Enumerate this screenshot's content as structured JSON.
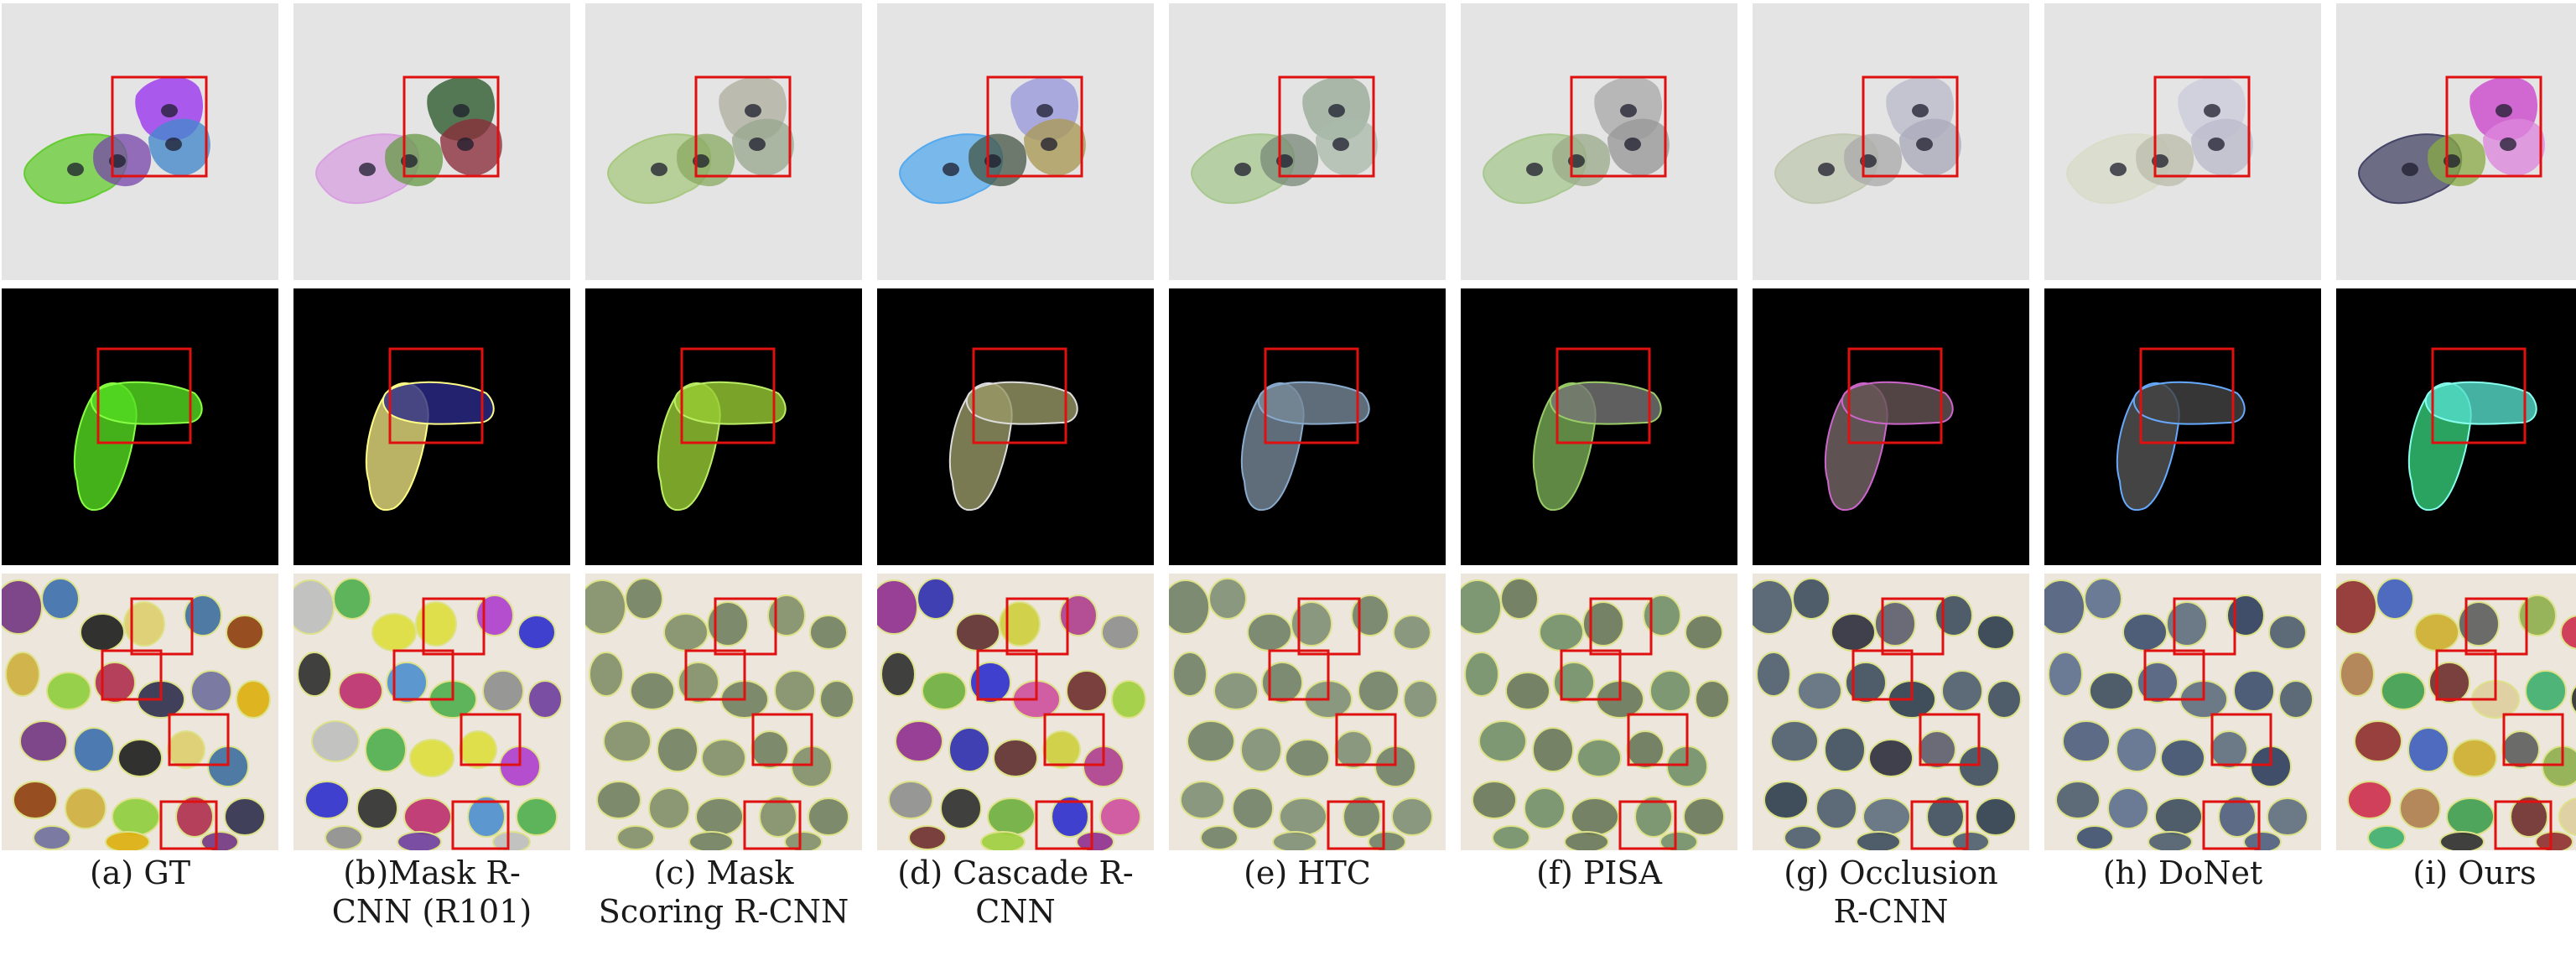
{
  "captions": [
    [
      "(a) GT"
    ],
    [
      "(b)Mask R-",
      "CNN (R101)"
    ],
    [
      "(c) Mask",
      "Scoring R-CNN"
    ],
    [
      "(d) Cascade R-",
      "CNN"
    ],
    [
      "(e) HTC"
    ],
    [
      "(f) PISA"
    ],
    [
      "(g) Occlusion",
      "R-CNN"
    ],
    [
      "(h) DoNet"
    ],
    [
      "(i) Ours"
    ]
  ],
  "colors": {
    "highlight_box": "#e01010",
    "row1_background": "#e4e4e4",
    "row2_background": "#000000",
    "row3_background": "#ece6dc"
  },
  "methods": [
    {
      "row1": {
        "cells": [
          "#66cc33",
          "#7744aa",
          "#9933ee",
          "#4488cc"
        ]
      },
      "row2": {
        "cells": [
          "#55dd22",
          "#55dd22"
        ],
        "border": "#88ff44"
      },
      "row3": {
        "fills": [
          "#6a2a7a",
          "#3366aa",
          "#111111",
          "#ddcc66",
          "#336699",
          "#883300",
          "#ccaa33",
          "#88cc33",
          "#aa2244",
          "#222244",
          "#666699",
          "#ddaa00"
        ]
      }
    },
    {
      "row1": {
        "cells": [
          "#d8a0e0",
          "#669944",
          "#2c5a2c",
          "#8b2d3a"
        ]
      },
      "row2": {
        "cells": [
          "#e8e080",
          "#2a2a8a"
        ],
        "border": "#ffff88"
      },
      "row3": {
        "fills": [
          "#bbbbbb",
          "#44aa44",
          "#dddd33",
          "#dddd33",
          "#aa33cc",
          "#2222cc",
          "#222222",
          "#bb2266",
          "#4488cc",
          "#44aa44",
          "#888888",
          "#663399"
        ]
      }
    },
    {
      "row1": {
        "cells": [
          "#a8c880",
          "#8aaa60",
          "#b0b0a0",
          "#9aa890"
        ]
      },
      "row2": {
        "cells": [
          "#99cc33",
          "#99cc33"
        ],
        "border": "#bbee66"
      },
      "row3": {
        "fills": [
          "#7a8a60",
          "#6a7a58",
          "#7a8a60",
          "#6a7a58",
          "#7a8a60",
          "#6a7a58",
          "#7a8a60",
          "#6a7a58",
          "#7a8a60",
          "#6a7a58",
          "#7a8a60",
          "#6a7a58"
        ]
      }
    },
    {
      "row1": {
        "cells": [
          "#55aaee",
          "#445544",
          "#9999dd",
          "#aa9955"
        ]
      },
      "row2": {
        "cells": [
          "#999966",
          "#999966"
        ],
        "border": "#dddddd"
      },
      "row3": {
        "fills": [
          "#882288",
          "#2222aa",
          "#552222",
          "#cccc33",
          "#aa3388",
          "#888888",
          "#222222",
          "#66aa33",
          "#2222cc",
          "#cc4499",
          "#662222",
          "#99cc33"
        ]
      }
    },
    {
      "row1": {
        "cells": [
          "#a8c890",
          "#778877",
          "#99aa99",
          "#aabbaa"
        ]
      },
      "row2": {
        "cells": [
          "#778899",
          "#778899"
        ],
        "border": "#88aacc"
      },
      "row3": {
        "fills": [
          "#6a7a60",
          "#7a8a70",
          "#6a7a60",
          "#7a8a70",
          "#6a7a60",
          "#7a8a70",
          "#6a7a60",
          "#7a8a70",
          "#6a7a60",
          "#7a8a70",
          "#6a7a60",
          "#7a8a70"
        ]
      }
    },
    {
      "row1": {
        "cells": [
          "#a8c890",
          "#99aa88",
          "#aaaaaa",
          "#999999"
        ]
      },
      "row2": {
        "cells": [
          "#77aa55",
          "#777777"
        ],
        "border": "#99cc66"
      },
      "row3": {
        "fills": [
          "#6a8a60",
          "#607050",
          "#6a8a60",
          "#607050",
          "#6a8a60",
          "#607050",
          "#6a8a60",
          "#607050",
          "#6a8a60",
          "#607050",
          "#6a8a60",
          "#607050"
        ]
      }
    },
    {
      "row1": {
        "cells": [
          "#c0c8b0",
          "#aaaaaa",
          "#bbbbcc",
          "#aaaabb"
        ]
      },
      "row2": {
        "cells": [
          "#776666",
          "#665555"
        ],
        "border": "#cc66cc"
      },
      "row3": {
        "fills": [
          "#445566",
          "#334455",
          "#222233",
          "#555566",
          "#334455",
          "#223344",
          "#445566",
          "#556677",
          "#334455",
          "#223344",
          "#445566",
          "#334455"
        ]
      }
    },
    {
      "row1": {
        "cells": [
          "#d8dcc8",
          "#bbbbaa",
          "#ccccdd",
          "#bbbbcc"
        ]
      },
      "row2": {
        "cells": [
          "#555555",
          "#444444"
        ],
        "border": "#66aaff"
      },
      "row3": {
        "fills": [
          "#445577",
          "#556688",
          "#334466",
          "#556677",
          "#223355",
          "#445566",
          "#556688",
          "#334455",
          "#445577",
          "#556677",
          "#334466",
          "#445566"
        ]
      }
    },
    {
      "row1": {
        "cells": [
          "#444466",
          "#88aa44",
          "#cc44cc",
          "#dd88dd"
        ]
      },
      "row2": {
        "cells": [
          "#33cc77",
          "#55ddcc"
        ],
        "border": "#88ffee"
      },
      "row3": {
        "fills": [
          "#882222",
          "#3355bb",
          "#ccaa22",
          "#555555",
          "#88aa44",
          "#cc2244",
          "#aa7744",
          "#339944",
          "#662222",
          "#ddcc99",
          "#33aa66",
          "#222222"
        ]
      }
    }
  ]
}
